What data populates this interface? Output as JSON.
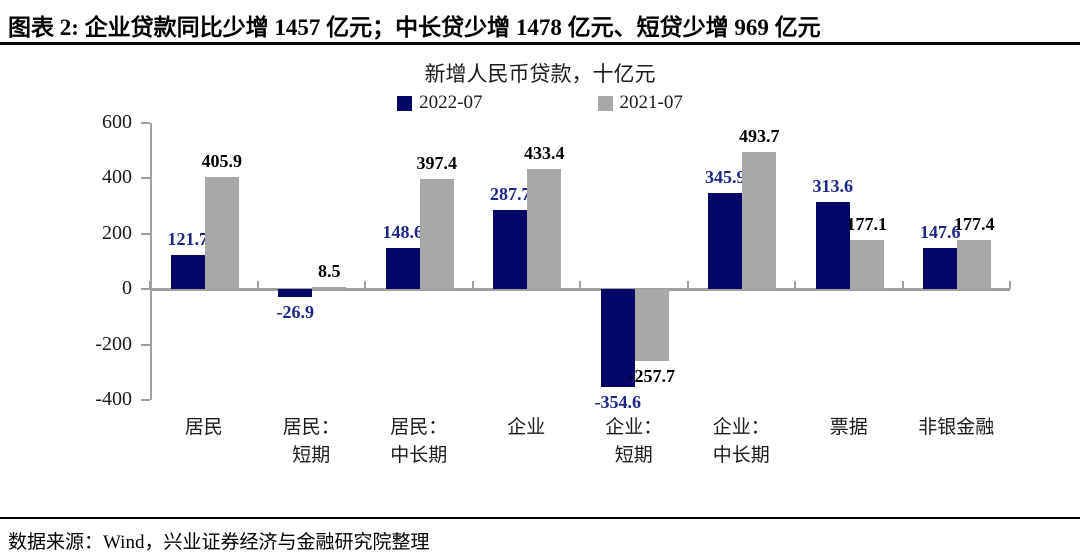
{
  "page": {
    "title": "图表 2: 企业贷款同比少增 1457 亿元；中长贷少增 1478 亿元、短贷少增 969 亿元",
    "source": "数据来源：Wind，兴业证券经济与金融研究院整理"
  },
  "chart_data": {
    "type": "bar",
    "title": "新增人民币贷款，十亿元",
    "categories": [
      "居民",
      "居民：短期",
      "居民：中长期",
      "企业",
      "企业：短期",
      "企业：中长期",
      "票据",
      "非银金融"
    ],
    "category_label_lines": [
      [
        "居民"
      ],
      [
        "居民：",
        "短期"
      ],
      [
        "居民：",
        "中长期"
      ],
      [
        "企业"
      ],
      [
        "企业：",
        "短期"
      ],
      [
        "企业：",
        "中长期"
      ],
      [
        "票据"
      ],
      [
        "非银金融"
      ]
    ],
    "series": [
      {
        "name": "2022-07",
        "color": "#050768",
        "label_color": "#1c2788",
        "values": [
          121.7,
          -26.9,
          148.6,
          287.7,
          -354.6,
          345.9,
          313.6,
          147.6
        ]
      },
      {
        "name": "2021-07",
        "color": "#a8a8a8",
        "label_color": "#000000",
        "values": [
          405.9,
          8.5,
          397.4,
          433.4,
          -257.7,
          493.7,
          177.1,
          177.4
        ]
      }
    ],
    "ylabel": "",
    "xlabel": "",
    "ylim": [
      -400,
      600
    ],
    "yticks": [
      600,
      400,
      200,
      0,
      -200,
      -400
    ],
    "grid": false,
    "legend_position": "top",
    "axis_color": "#a0a0a0"
  }
}
